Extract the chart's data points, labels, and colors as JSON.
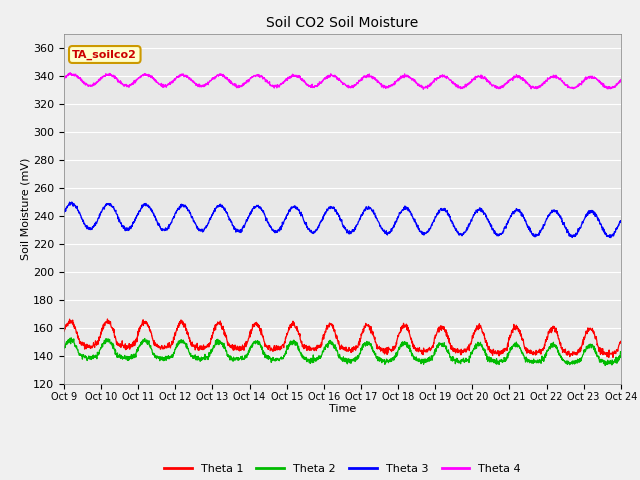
{
  "title": "Soil CO2 Soil Moisture",
  "xlabel": "Time",
  "ylabel": "Soil Moisture (mV)",
  "annotation": "TA_soilco2",
  "ylim": [
    120,
    370
  ],
  "yticks": [
    120,
    140,
    160,
    180,
    200,
    220,
    240,
    260,
    280,
    300,
    320,
    340,
    360
  ],
  "xtick_labels": [
    "Oct 9",
    "Oct 10",
    "Oct 11",
    "Oct 12",
    "Oct 13",
    "Oct 14",
    "Oct 15",
    "Oct 16",
    "Oct 17",
    "Oct 18",
    "Oct 19",
    "Oct 20",
    "Oct 21",
    "Oct 22",
    "Oct 23",
    "Oct 24"
  ],
  "num_points": 2000,
  "theta1_base": 150,
  "theta1_amp": 10,
  "theta1_trend": -0.003,
  "theta2_base": 141,
  "theta2_amp": 7,
  "theta2_trend": -0.002,
  "theta3_base": 240,
  "theta3_amp": 9,
  "theta3_trend": -0.003,
  "theta4_base": 337,
  "theta4_amp": 4,
  "theta4_trend": -0.001,
  "colors": {
    "theta1": "#ff0000",
    "theta2": "#00bb00",
    "theta3": "#0000ff",
    "theta4": "#ff00ff"
  },
  "legend_labels": [
    "Theta 1",
    "Theta 2",
    "Theta 3",
    "Theta 4"
  ],
  "bg_color": "#e8e8e8",
  "grid_color": "#ffffff",
  "linewidth": 0.9,
  "annotation_bg": "#ffffcc",
  "annotation_border": "#cc9900",
  "fig_facecolor": "#f0f0f0"
}
